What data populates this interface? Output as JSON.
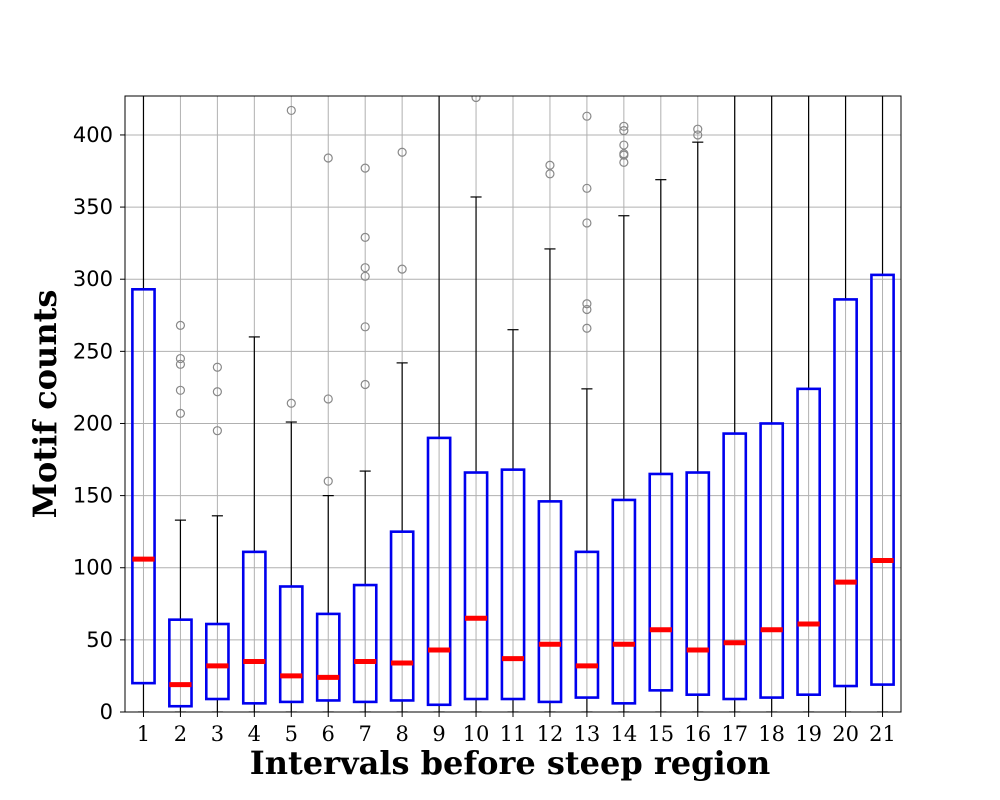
{
  "chart_data": {
    "type": "box",
    "xlabel": "Intervals before steep region",
    "ylabel": "Motif counts",
    "ylim": [
      0,
      427
    ],
    "yticks": [
      0,
      50,
      100,
      150,
      200,
      250,
      300,
      350,
      400
    ],
    "grid": true,
    "colors": {
      "box": "#0000ee",
      "median": "#ff0000",
      "whisker": "#000000",
      "flier": "#888888",
      "grid": "#b0b0b0"
    },
    "categories": [
      "1",
      "2",
      "3",
      "4",
      "5",
      "6",
      "7",
      "8",
      "9",
      "10",
      "11",
      "12",
      "13",
      "14",
      "15",
      "16",
      "17",
      "18",
      "19",
      "20",
      "21"
    ],
    "boxes": [
      {
        "q1": 20,
        "median": 106,
        "q3": 293,
        "whislo": 0,
        "whishi": 700,
        "fliers": []
      },
      {
        "q1": 4,
        "median": 19,
        "q3": 64,
        "whislo": 0,
        "whishi": 133,
        "fliers": [
          207,
          223,
          241,
          245,
          268
        ]
      },
      {
        "q1": 9,
        "median": 32,
        "q3": 61,
        "whislo": 0,
        "whishi": 136,
        "fliers": [
          195,
          222,
          239
        ]
      },
      {
        "q1": 6,
        "median": 35,
        "q3": 111,
        "whislo": 0,
        "whishi": 260,
        "fliers": []
      },
      {
        "q1": 7,
        "median": 25,
        "q3": 87,
        "whislo": 0,
        "whishi": 201,
        "fliers": [
          214,
          417
        ]
      },
      {
        "q1": 8,
        "median": 24,
        "q3": 68,
        "whislo": 0,
        "whishi": 150,
        "fliers": [
          160,
          217,
          384
        ]
      },
      {
        "q1": 7,
        "median": 35,
        "q3": 88,
        "whislo": 0,
        "whishi": 167,
        "fliers": [
          227,
          267,
          302,
          308,
          329,
          377
        ]
      },
      {
        "q1": 8,
        "median": 34,
        "q3": 125,
        "whislo": 0,
        "whishi": 242,
        "fliers": [
          307,
          388
        ]
      },
      {
        "q1": 5,
        "median": 43,
        "q3": 190,
        "whislo": 0,
        "whishi": 700,
        "fliers": []
      },
      {
        "q1": 9,
        "median": 65,
        "q3": 166,
        "whislo": 0,
        "whishi": 357,
        "fliers": [
          426
        ]
      },
      {
        "q1": 9,
        "median": 37,
        "q3": 168,
        "whislo": 0,
        "whishi": 265,
        "fliers": []
      },
      {
        "q1": 7,
        "median": 47,
        "q3": 146,
        "whislo": 0,
        "whishi": 321,
        "fliers": [
          373,
          379
        ]
      },
      {
        "q1": 10,
        "median": 32,
        "q3": 111,
        "whislo": 0,
        "whishi": 224,
        "fliers": [
          266,
          279,
          283,
          339,
          363,
          413
        ]
      },
      {
        "q1": 6,
        "median": 47,
        "q3": 147,
        "whislo": 0,
        "whishi": 344,
        "fliers": [
          381,
          386,
          387,
          393,
          403,
          406
        ]
      },
      {
        "q1": 15,
        "median": 57,
        "q3": 165,
        "whislo": 0,
        "whishi": 369,
        "fliers": []
      },
      {
        "q1": 12,
        "median": 43,
        "q3": 166,
        "whislo": 0,
        "whishi": 395,
        "fliers": [
          400,
          404
        ]
      },
      {
        "q1": 9,
        "median": 48,
        "q3": 193,
        "whislo": 0,
        "whishi": 700,
        "fliers": []
      },
      {
        "q1": 10,
        "median": 57,
        "q3": 200,
        "whislo": 0,
        "whishi": 700,
        "fliers": []
      },
      {
        "q1": 12,
        "median": 61,
        "q3": 224,
        "whislo": 0,
        "whishi": 700,
        "fliers": []
      },
      {
        "q1": 18,
        "median": 90,
        "q3": 286,
        "whislo": 0,
        "whishi": 700,
        "fliers": []
      },
      {
        "q1": 19,
        "median": 105,
        "q3": 303,
        "whislo": 0,
        "whishi": 700,
        "fliers": []
      }
    ]
  }
}
